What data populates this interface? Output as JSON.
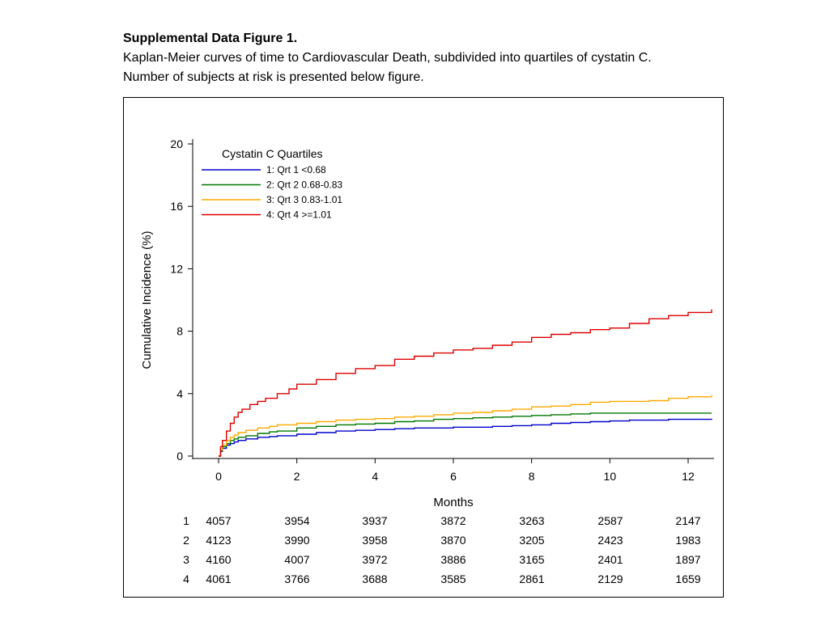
{
  "caption": {
    "title": "Supplemental Data Figure 1.",
    "line1": "Kaplan-Meier curves of time to Cardiovascular Death, subdivided into quartiles of cystatin C.",
    "line2": "Number of subjects at risk is presented below figure."
  },
  "chart_data": {
    "type": "line",
    "title": "",
    "xlabel": "Months",
    "ylabel": "Cumulative Incidence (%)",
    "xlim": [
      0,
      12.6
    ],
    "ylim": [
      0,
      20
    ],
    "xticks": [
      0,
      2,
      4,
      6,
      8,
      10,
      12
    ],
    "yticks": [
      0,
      4,
      8,
      12,
      16,
      20
    ],
    "grid": false,
    "legend": {
      "title": "Cystatin C Quartiles",
      "placement": "top-left"
    },
    "series": [
      {
        "name": "1: Qrt 1 <0.68",
        "color": "#0000cc",
        "x": [
          0,
          0.05,
          0.1,
          0.2,
          0.3,
          0.4,
          0.5,
          0.7,
          1.0,
          1.3,
          1.5,
          2.0,
          2.5,
          3.0,
          3.5,
          4.0,
          4.5,
          5.0,
          5.5,
          6.0,
          6.5,
          7.0,
          7.5,
          8.0,
          8.5,
          9.0,
          9.5,
          10.0,
          10.5,
          11.0,
          11.5,
          12.0,
          12.6
        ],
        "y": [
          0,
          0.3,
          0.5,
          0.7,
          0.8,
          0.9,
          1.0,
          1.1,
          1.2,
          1.25,
          1.3,
          1.4,
          1.5,
          1.6,
          1.65,
          1.7,
          1.75,
          1.8,
          1.8,
          1.85,
          1.85,
          1.9,
          1.95,
          2.0,
          2.1,
          2.15,
          2.2,
          2.25,
          2.3,
          2.3,
          2.35,
          2.35,
          2.4
        ]
      },
      {
        "name": "2: Qrt 2 0.68-0.83",
        "color": "#007700",
        "x": [
          0,
          0.05,
          0.1,
          0.2,
          0.3,
          0.4,
          0.5,
          0.7,
          1.0,
          1.3,
          1.5,
          2.0,
          2.5,
          3.0,
          3.5,
          4.0,
          4.5,
          5.0,
          5.5,
          6.0,
          6.5,
          7.0,
          7.5,
          8.0,
          8.5,
          9.0,
          9.5,
          10.0,
          10.5,
          11.0,
          11.5,
          12.0,
          12.6
        ],
        "y": [
          0,
          0.35,
          0.6,
          0.8,
          1.0,
          1.1,
          1.2,
          1.3,
          1.45,
          1.55,
          1.6,
          1.8,
          1.9,
          2.0,
          2.05,
          2.1,
          2.2,
          2.25,
          2.35,
          2.4,
          2.45,
          2.5,
          2.55,
          2.6,
          2.65,
          2.7,
          2.75,
          2.75,
          2.75,
          2.75,
          2.75,
          2.75,
          2.75
        ]
      },
      {
        "name": "3: Qrt 3 0.83-1.01",
        "color": "#ffaa00",
        "x": [
          0,
          0.05,
          0.1,
          0.2,
          0.3,
          0.4,
          0.5,
          0.7,
          1.0,
          1.3,
          1.5,
          2.0,
          2.5,
          3.0,
          3.5,
          4.0,
          4.5,
          5.0,
          5.5,
          6.0,
          6.5,
          7.0,
          7.5,
          8.0,
          8.5,
          9.0,
          9.5,
          10.0,
          10.5,
          11.0,
          11.5,
          12.0,
          12.6
        ],
        "y": [
          0,
          0.4,
          0.7,
          1.0,
          1.2,
          1.35,
          1.5,
          1.65,
          1.8,
          1.9,
          2.0,
          2.1,
          2.2,
          2.3,
          2.35,
          2.4,
          2.5,
          2.55,
          2.65,
          2.75,
          2.8,
          2.9,
          3.0,
          3.15,
          3.2,
          3.3,
          3.45,
          3.5,
          3.5,
          3.55,
          3.7,
          3.8,
          3.9
        ]
      },
      {
        "name": "4: Qrt 4 >=1.01",
        "color": "#dd0000",
        "x": [
          0,
          0.05,
          0.1,
          0.2,
          0.3,
          0.4,
          0.5,
          0.6,
          0.8,
          1.0,
          1.2,
          1.5,
          1.8,
          2.0,
          2.5,
          3.0,
          3.5,
          4.0,
          4.5,
          5.0,
          5.5,
          6.0,
          6.5,
          7.0,
          7.5,
          8.0,
          8.5,
          9.0,
          9.5,
          10.0,
          10.5,
          11.0,
          11.5,
          12.0,
          12.6
        ],
        "y": [
          0,
          0.6,
          1.0,
          1.6,
          2.1,
          2.5,
          2.8,
          3.0,
          3.3,
          3.5,
          3.7,
          4.0,
          4.3,
          4.6,
          4.9,
          5.3,
          5.6,
          5.8,
          6.2,
          6.4,
          6.6,
          6.8,
          6.9,
          7.1,
          7.3,
          7.6,
          7.8,
          7.9,
          8.1,
          8.2,
          8.5,
          8.8,
          9.0,
          9.2,
          9.4
        ]
      }
    ],
    "risk_table": {
      "rows": [
        {
          "label": "1",
          "values": [
            "4057",
            "3954",
            "3937",
            "3872",
            "3263",
            "2587",
            "2147"
          ]
        },
        {
          "label": "2",
          "values": [
            "4123",
            "3990",
            "3958",
            "3870",
            "3205",
            "2423",
            "1983"
          ]
        },
        {
          "label": "3",
          "values": [
            "4160",
            "4007",
            "3972",
            "3886",
            "3165",
            "2401",
            "1897"
          ]
        },
        {
          "label": "4",
          "values": [
            "4061",
            "3766",
            "3688",
            "3585",
            "2861",
            "2129",
            "1659"
          ]
        }
      ]
    }
  }
}
